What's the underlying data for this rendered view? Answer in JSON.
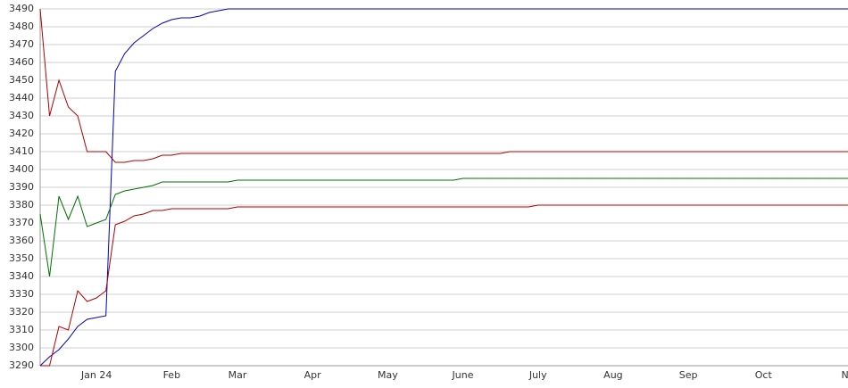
{
  "chart_data": {
    "type": "line",
    "categories": [
      null,
      null,
      null,
      null,
      null,
      null,
      "Jan 24",
      null,
      null,
      null,
      null,
      null,
      null,
      null,
      "Feb",
      null,
      null,
      null,
      null,
      null,
      null,
      "Mar",
      null,
      null,
      null,
      null,
      null,
      null,
      null,
      "Apr",
      null,
      null,
      null,
      null,
      null,
      null,
      null,
      "May",
      null,
      null,
      null,
      null,
      null,
      null,
      null,
      "June",
      null,
      null,
      null,
      null,
      null,
      null,
      null,
      "July",
      null,
      null,
      null,
      null,
      null,
      null,
      null,
      "Aug",
      null,
      null,
      null,
      null,
      null,
      null,
      null,
      "Sep",
      null,
      null,
      null,
      null,
      null,
      null,
      null,
      "Oct",
      null,
      null,
      null,
      null,
      null,
      null,
      null,
      null,
      "No"
    ],
    "series": [
      {
        "color": "#0000c0",
        "values": [
          3290,
          3295,
          3299,
          3305,
          3312,
          3316,
          3317,
          3318,
          3455,
          3465,
          3471,
          3475,
          3479,
          3482,
          3484,
          3485,
          3485,
          3486,
          3488,
          3489,
          3490,
          3490,
          3490,
          3490,
          3490,
          3490,
          3490,
          3490,
          3490,
          3490,
          3490,
          3490,
          3490,
          3490,
          3490,
          3490,
          3490,
          3490,
          3490,
          3490,
          3490,
          3490,
          3490,
          3490,
          3490,
          3490,
          3490,
          3490,
          3490,
          3490,
          3490,
          3490,
          3490,
          3490,
          3490,
          3490,
          3490,
          3490,
          3490,
          3490,
          3490,
          3490,
          3490,
          3490,
          3490,
          3490,
          3490,
          3490,
          3490,
          3490,
          3490,
          3490,
          3490,
          3490,
          3490,
          3490,
          3490,
          3490,
          3490,
          3490,
          3490,
          3490,
          3490,
          3490,
          3490,
          3490,
          3490
        ]
      },
      {
        "color": "#b00000",
        "values": [
          3490,
          3430,
          3450,
          3435,
          3430,
          3410,
          3410,
          3410,
          3404,
          3404,
          3405,
          3405,
          3406,
          3408,
          3408,
          3409,
          3409,
          3409,
          3409,
          3409,
          3409,
          3409,
          3409,
          3409,
          3409,
          3409,
          3409,
          3409,
          3409,
          3409,
          3409,
          3409,
          3409,
          3409,
          3409,
          3409,
          3409,
          3409,
          3409,
          3409,
          3409,
          3409,
          3409,
          3409,
          3409,
          3409,
          3409,
          3409,
          3409,
          3409,
          3410,
          3410,
          3410,
          3410,
          3410,
          3410,
          3410,
          3410,
          3410,
          3410,
          3410,
          3410,
          3410,
          3410,
          3410,
          3410,
          3410,
          3410,
          3410,
          3410,
          3410,
          3410,
          3410,
          3410,
          3410,
          3410,
          3410,
          3410,
          3410,
          3410,
          3410,
          3410,
          3410,
          3410,
          3410,
          3410,
          3410
        ]
      },
      {
        "color": "#007000",
        "values": [
          3375,
          3340,
          3385,
          3372,
          3385,
          3368,
          3370,
          3372,
          3386,
          3388,
          3389,
          3390,
          3391,
          3393,
          3393,
          3393,
          3393,
          3393,
          3393,
          3393,
          3393,
          3394,
          3394,
          3394,
          3394,
          3394,
          3394,
          3394,
          3394,
          3394,
          3394,
          3394,
          3394,
          3394,
          3394,
          3394,
          3394,
          3394,
          3394,
          3394,
          3394,
          3394,
          3394,
          3394,
          3394,
          3395,
          3395,
          3395,
          3395,
          3395,
          3395,
          3395,
          3395,
          3395,
          3395,
          3395,
          3395,
          3395,
          3395,
          3395,
          3395,
          3395,
          3395,
          3395,
          3395,
          3395,
          3395,
          3395,
          3395,
          3395,
          3395,
          3395,
          3395,
          3395,
          3395,
          3395,
          3395,
          3395,
          3395,
          3395,
          3395,
          3395,
          3395,
          3395,
          3395,
          3395,
          3395
        ]
      },
      {
        "color": "#b00000",
        "values": [
          3290,
          3290,
          3312,
          3310,
          3332,
          3326,
          3328,
          3332,
          3369,
          3371,
          3374,
          3375,
          3377,
          3377,
          3378,
          3378,
          3378,
          3378,
          3378,
          3378,
          3378,
          3379,
          3379,
          3379,
          3379,
          3379,
          3379,
          3379,
          3379,
          3379,
          3379,
          3379,
          3379,
          3379,
          3379,
          3379,
          3379,
          3379,
          3379,
          3379,
          3379,
          3379,
          3379,
          3379,
          3379,
          3379,
          3379,
          3379,
          3379,
          3379,
          3379,
          3379,
          3379,
          3380,
          3380,
          3380,
          3380,
          3380,
          3380,
          3380,
          3380,
          3380,
          3380,
          3380,
          3380,
          3380,
          3380,
          3380,
          3380,
          3380,
          3380,
          3380,
          3380,
          3380,
          3380,
          3380,
          3380,
          3380,
          3380,
          3380,
          3380,
          3380,
          3380,
          3380,
          3380,
          3380,
          3380
        ]
      }
    ],
    "ylim": [
      3290,
      3490
    ],
    "yticks": [
      3290,
      3300,
      3310,
      3320,
      3330,
      3340,
      3350,
      3360,
      3370,
      3380,
      3390,
      3400,
      3410,
      3420,
      3430,
      3440,
      3450,
      3460,
      3470,
      3480,
      3490
    ],
    "grid": true
  }
}
